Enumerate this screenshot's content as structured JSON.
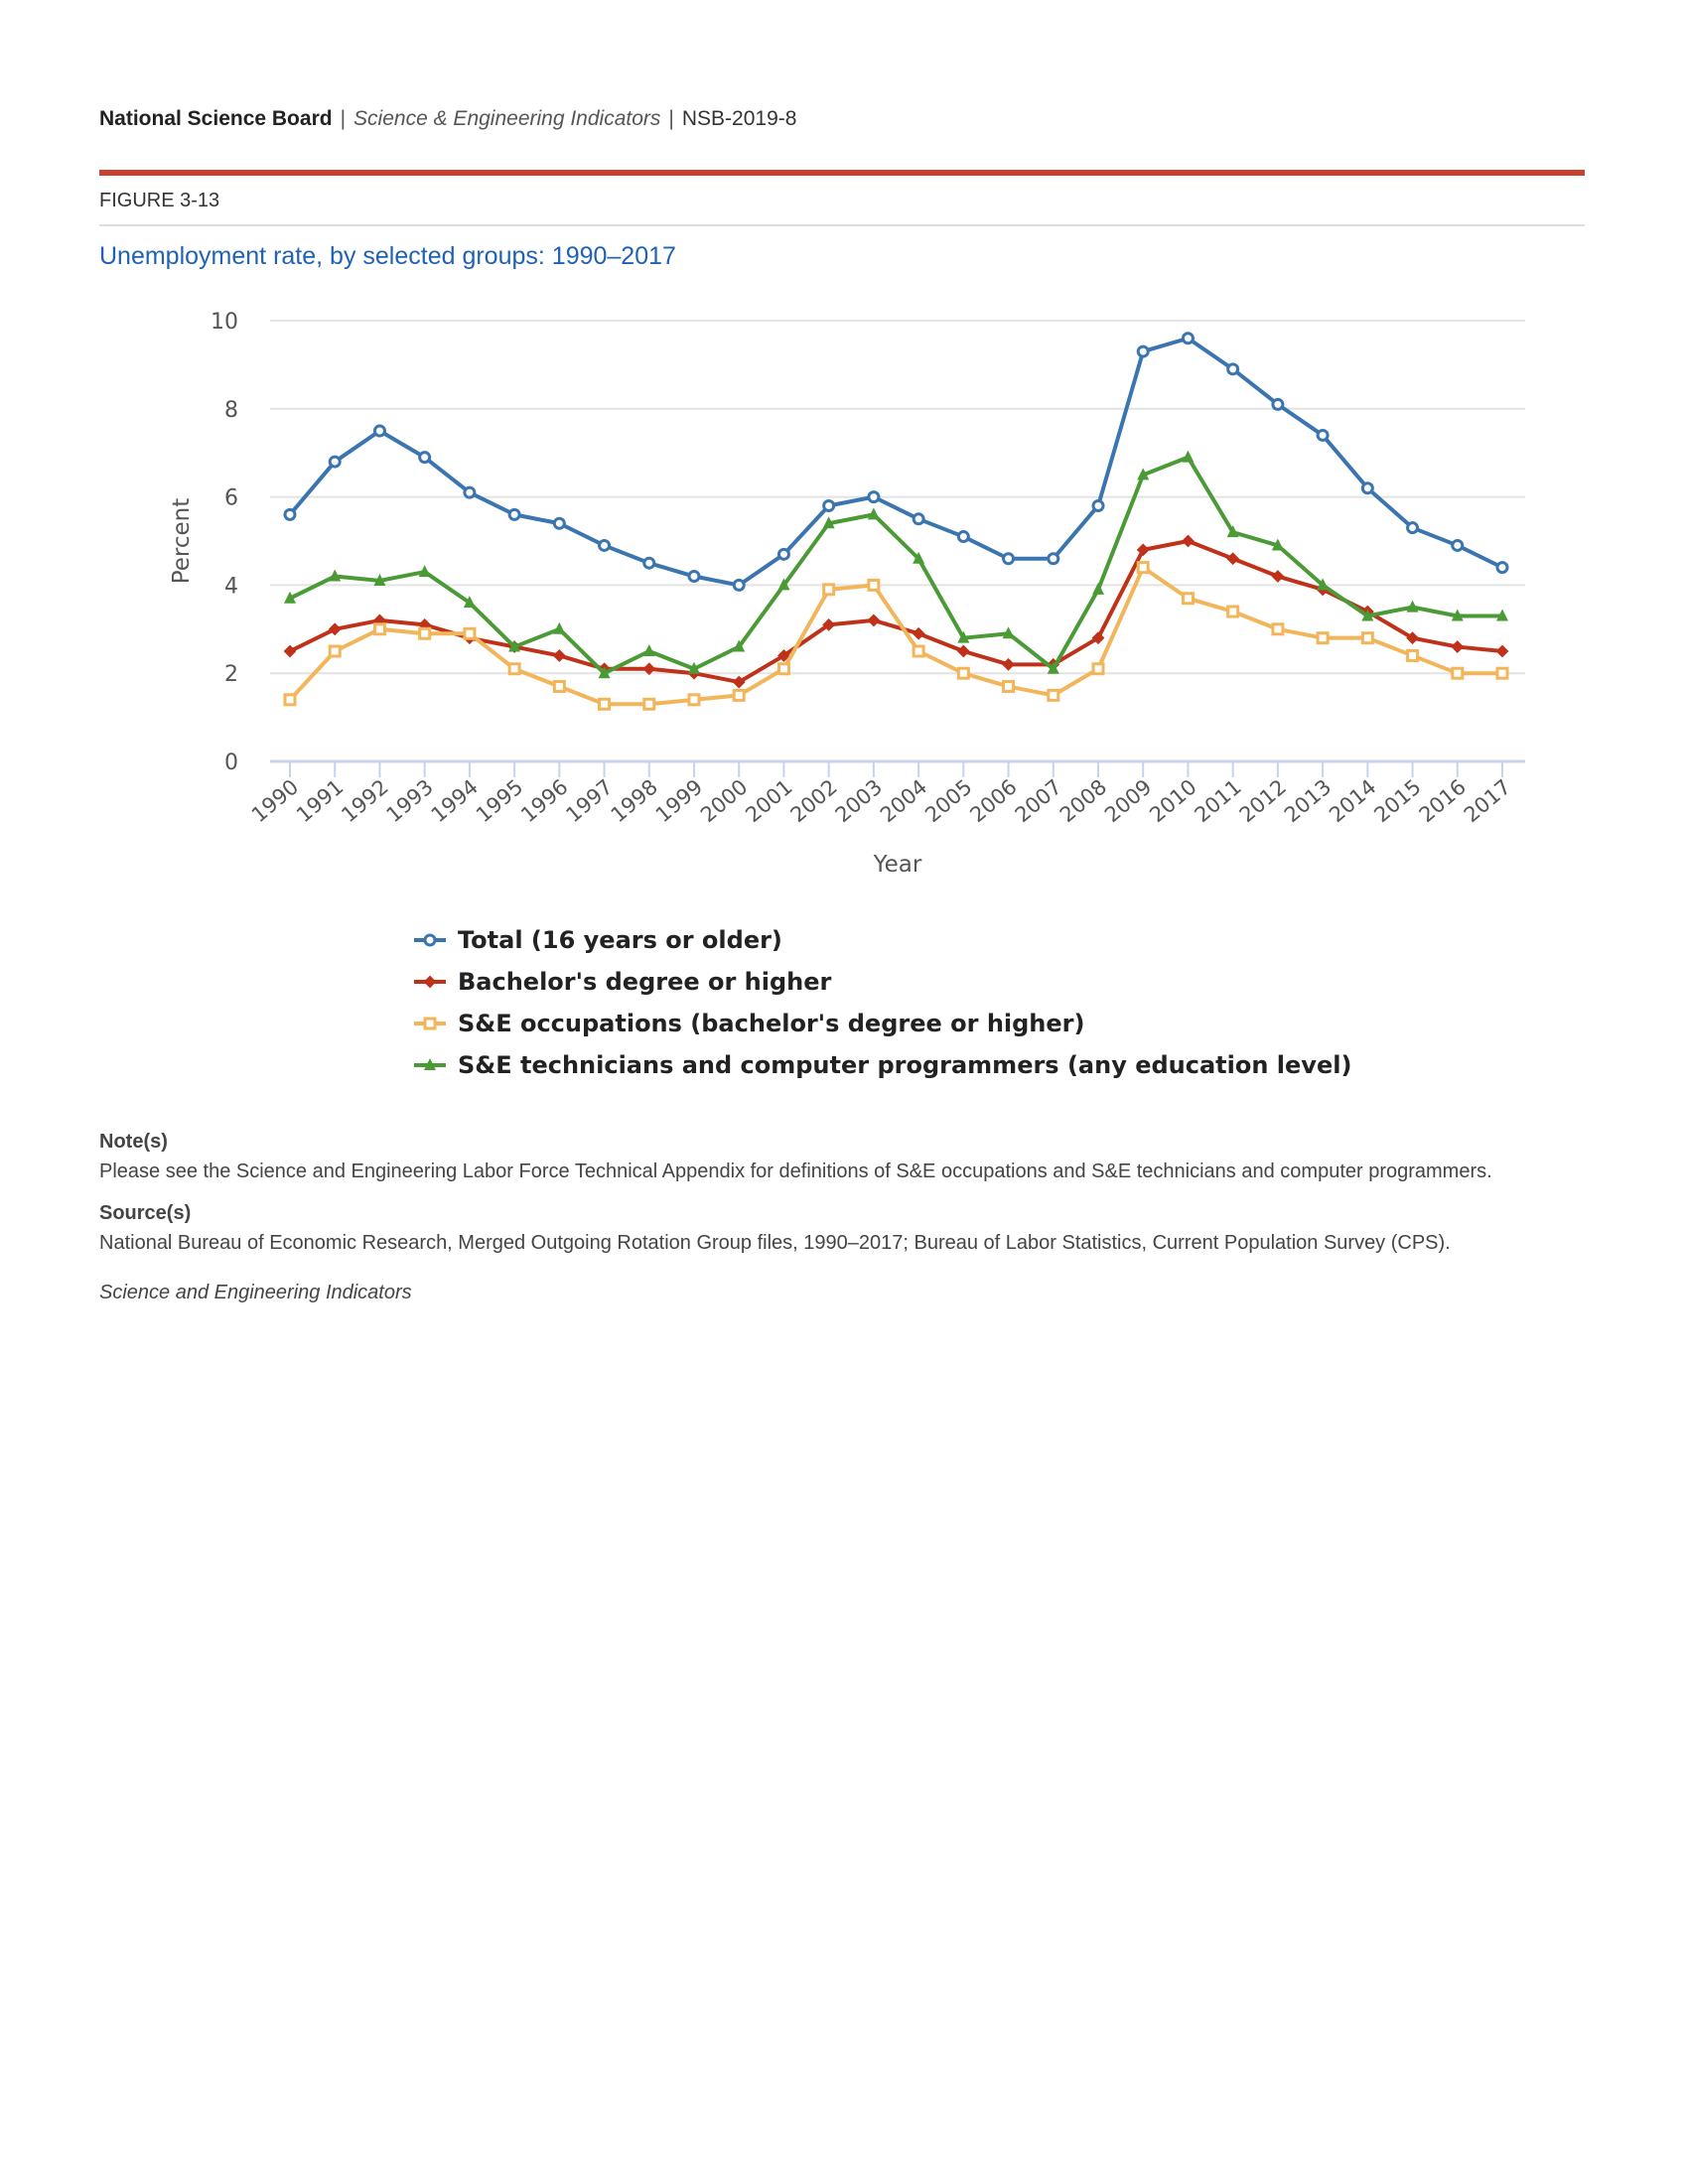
{
  "header": {
    "org": "National Science Board",
    "sep1": "|",
    "publication": "Science & Engineering Indicators",
    "sep2": "|",
    "report_id": "NSB-2019-8"
  },
  "figure_label": "FIGURE 3-13",
  "notes": {
    "notes_heading": "Note(s)",
    "notes_text": "Please see the Science and Engineering Labor Force Technical Appendix for definitions of S&E occupations and S&E technicians and computer programmers.",
    "source_heading": "Source(s)",
    "source_text": "National Bureau of Economic Research, Merged Outgoing Rotation Group files, 1990–2017; Bureau of Labor Statistics, Current Population Survey (CPS).",
    "footer": "Science and Engineering Indicators"
  },
  "chart_data": {
    "type": "line",
    "title": "Unemployment rate, by selected groups: 1990–2017",
    "xlabel": "Year",
    "ylabel": "Percent",
    "ylim": [
      0,
      10
    ],
    "yticks": [
      0,
      2,
      4,
      6,
      8,
      10
    ],
    "grid": true,
    "legend_position": "bottom",
    "x": [
      "1990",
      "1991",
      "1992",
      "1993",
      "1994",
      "1995",
      "1996",
      "1997",
      "1998",
      "1999",
      "2000",
      "2001",
      "2002",
      "2003",
      "2004",
      "2005",
      "2006",
      "2007",
      "2008",
      "2009",
      "2010",
      "2011",
      "2012",
      "2013",
      "2014",
      "2015",
      "2016",
      "2017"
    ],
    "series": [
      {
        "name": "Total (16 years or older)",
        "color": "#3a75b0",
        "marker": "circle",
        "values": [
          5.6,
          6.8,
          7.5,
          6.9,
          6.1,
          5.6,
          5.4,
          4.9,
          4.5,
          4.2,
          4.0,
          4.7,
          5.8,
          6.0,
          5.5,
          5.1,
          4.6,
          4.6,
          5.8,
          9.3,
          9.6,
          8.9,
          8.1,
          7.4,
          6.2,
          5.3,
          4.9,
          4.4
        ]
      },
      {
        "name": "Bachelor's degree or higher",
        "color": "#c0311a",
        "marker": "diamond",
        "values": [
          2.5,
          3.0,
          3.2,
          3.1,
          2.8,
          2.6,
          2.4,
          2.1,
          2.1,
          2.0,
          1.8,
          2.4,
          3.1,
          3.2,
          2.9,
          2.5,
          2.2,
          2.2,
          2.8,
          4.8,
          5.0,
          4.6,
          4.2,
          3.9,
          3.4,
          2.8,
          2.6,
          2.5
        ]
      },
      {
        "name": "S&E occupations (bachelor's degree or higher)",
        "color": "#f2b55a",
        "marker": "square",
        "values": [
          1.4,
          2.5,
          3.0,
          2.9,
          2.9,
          2.1,
          1.7,
          1.3,
          1.3,
          1.4,
          1.5,
          2.1,
          3.9,
          4.0,
          2.5,
          2.0,
          1.7,
          1.5,
          2.1,
          4.4,
          3.7,
          3.4,
          3.0,
          2.8,
          2.8,
          2.4,
          2.0,
          2.0
        ]
      },
      {
        "name": "S&E technicians and computer programmers (any education level)",
        "color": "#4a9a35",
        "marker": "triangle",
        "values": [
          3.7,
          4.2,
          4.1,
          4.3,
          3.6,
          2.6,
          3.0,
          2.0,
          2.5,
          2.1,
          2.6,
          4.0,
          5.4,
          5.6,
          4.6,
          2.8,
          2.9,
          2.1,
          3.9,
          6.5,
          6.9,
          5.2,
          4.9,
          4.0,
          3.3,
          3.5,
          3.3,
          3.3
        ]
      }
    ]
  }
}
